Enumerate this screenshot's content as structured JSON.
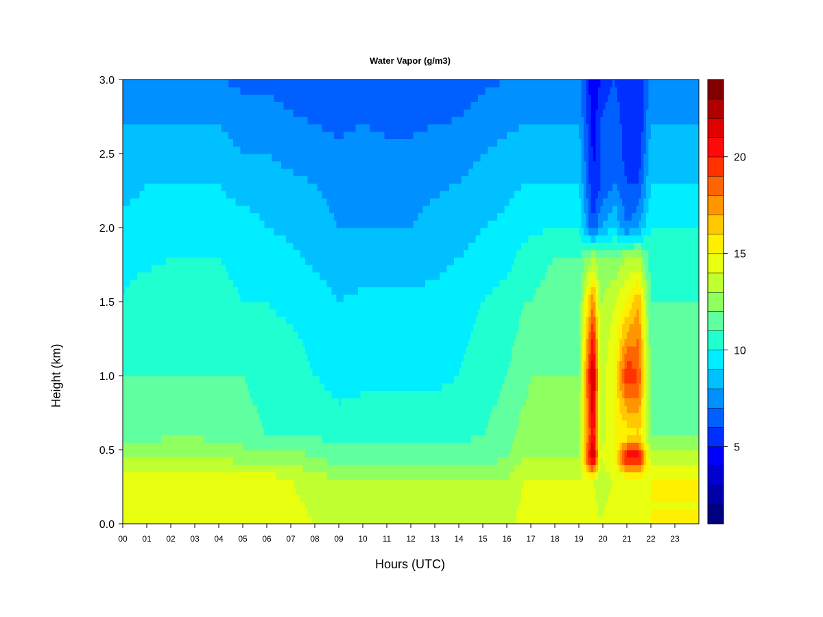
{
  "chart_data": {
    "type": "heatmap",
    "title": "Water Vapor (g/m3)",
    "xlabel": "Hours (UTC)",
    "ylabel": "Height (km)",
    "xlim": [
      0,
      24
    ],
    "ylim": [
      0,
      3
    ],
    "x_ticks": [
      0,
      1,
      2,
      3,
      4,
      5,
      6,
      7,
      8,
      9,
      10,
      11,
      12,
      13,
      14,
      15,
      16,
      17,
      18,
      19,
      20,
      21,
      22,
      23
    ],
    "x_tick_labels": [
      "00",
      "01",
      "02",
      "03",
      "04",
      "05",
      "06",
      "07",
      "08",
      "09",
      "10",
      "11",
      "12",
      "13",
      "14",
      "15",
      "16",
      "17",
      "18",
      "19",
      "20",
      "21",
      "22",
      "23"
    ],
    "y_ticks": [
      0,
      0.5,
      1,
      1.5,
      2,
      2.5,
      3
    ],
    "y_tick_labels": [
      "0.0",
      "0.5",
      "1.0",
      "1.5",
      "2.0",
      "2.5",
      "3.0"
    ],
    "colorbar": {
      "min": 1,
      "max": 24,
      "ticks": [
        5,
        10,
        15,
        20
      ],
      "tick_labels": [
        "5",
        "10",
        "15",
        "20"
      ],
      "colors": [
        "#000080",
        "#0000A8",
        "#0000D0",
        "#0000FF",
        "#0030FF",
        "#0060FF",
        "#0090FF",
        "#00C0FF",
        "#00EEFF",
        "#20FFD0",
        "#60FFA0",
        "#90FF60",
        "#C0FF30",
        "#E8FF10",
        "#FFF000",
        "#FFC800",
        "#FF9600",
        "#FF6400",
        "#FF3200",
        "#FF0A0A",
        "#E00000",
        "#B00000",
        "#800000"
      ]
    },
    "value_levels": {
      "x_hours": [
        0,
        1,
        2,
        3,
        4,
        5,
        6,
        7,
        8,
        9,
        10,
        11,
        12,
        13,
        14,
        15,
        16,
        16.7,
        17,
        18,
        19,
        19.6,
        19.9,
        20.5,
        21,
        21.5,
        22,
        23,
        24
      ],
      "heights_km": [
        0,
        0.3,
        0.45,
        0.6,
        1.0,
        1.5,
        1.8,
        2.0,
        2.3,
        2.7,
        3.0
      ],
      "values": [
        [
          15,
          15,
          13,
          11.5,
          11,
          10,
          9.8,
          9.5,
          8.5,
          8,
          7.5
        ],
        [
          15,
          14.5,
          13,
          11.5,
          11,
          10.5,
          9.8,
          9.5,
          9,
          8,
          7.5
        ],
        [
          15,
          14.5,
          13,
          12,
          11,
          10.5,
          10,
          9.5,
          9,
          8,
          7
        ],
        [
          15,
          14.5,
          13,
          12,
          11,
          10.5,
          10,
          9.5,
          9,
          8,
          7
        ],
        [
          15,
          14.5,
          13,
          11.5,
          11,
          10.5,
          10,
          9.5,
          9,
          8,
          7
        ],
        [
          15,
          14.5,
          12.5,
          11.5,
          11,
          10,
          9.5,
          9.5,
          8.5,
          7.5,
          6.8
        ],
        [
          14.5,
          14.5,
          12.5,
          11,
          10.5,
          10,
          9.5,
          9,
          8.5,
          7.5,
          6.8
        ],
        [
          14.5,
          14,
          12.5,
          11,
          10.5,
          9.8,
          9.2,
          8.8,
          8.2,
          7.2,
          6.5
        ],
        [
          14,
          13.5,
          12,
          11,
          10,
          9.5,
          8.8,
          8.5,
          8,
          7,
          6.2
        ],
        [
          13.5,
          13,
          11.5,
          10.5,
          9.6,
          9,
          8.5,
          8,
          7.6,
          6.8,
          6.0
        ],
        [
          13.5,
          13,
          11.5,
          10.5,
          9.8,
          9.2,
          8.5,
          8,
          7.8,
          7,
          6.1
        ],
        [
          13.5,
          13,
          11.5,
          10.5,
          9.8,
          9.2,
          8.5,
          8,
          7.8,
          6.8,
          6.0
        ],
        [
          13.5,
          13,
          11.5,
          10.5,
          9.8,
          9.2,
          8.5,
          8,
          7.8,
          6.8,
          6.0
        ],
        [
          13.5,
          13,
          11.5,
          10.5,
          9.8,
          9.3,
          8.7,
          8.2,
          7.9,
          7,
          6.1
        ],
        [
          13.5,
          13,
          11.5,
          10.8,
          10,
          9.6,
          9,
          8.5,
          8,
          7.1,
          6.3
        ],
        [
          13.5,
          13,
          11.5,
          11,
          10.5,
          10,
          9.4,
          9,
          8.5,
          7.5,
          6.8
        ],
        [
          13.5,
          13,
          12,
          11.5,
          11,
          10.5,
          9.6,
          9.2,
          8.8,
          7.8,
          7
        ],
        [
          14.5,
          14,
          13,
          12.5,
          11.5,
          11,
          10.5,
          9.5,
          9,
          8,
          7
        ],
        [
          14.5,
          14,
          13,
          12.5,
          12,
          11,
          10.5,
          9.8,
          9,
          8,
          7.5
        ],
        [
          14.5,
          14,
          13,
          12.5,
          12,
          11.5,
          11,
          10,
          9,
          8,
          7.5
        ],
        [
          14.5,
          14,
          13,
          12.5,
          12,
          11.5,
          11,
          10,
          9,
          8,
          7.5
        ],
        [
          14.5,
          14,
          23,
          21,
          23,
          18,
          13,
          6,
          5,
          4.5,
          4
        ],
        [
          14,
          13.5,
          14,
          13.5,
          13.5,
          13,
          12,
          8,
          6,
          6,
          5
        ],
        [
          14.5,
          14,
          15,
          15,
          15,
          14,
          12,
          9,
          7,
          7,
          6
        ],
        [
          14.5,
          14,
          21,
          15,
          20,
          15,
          13,
          7,
          6,
          5,
          5
        ],
        [
          14.5,
          14,
          21,
          16,
          19,
          17,
          13,
          8,
          6,
          5,
          5
        ],
        [
          15,
          15,
          13.5,
          12,
          11.5,
          11,
          10.5,
          10,
          9,
          8,
          7.5
        ],
        [
          15,
          15,
          13.5,
          12,
          11.5,
          11,
          10.5,
          10,
          9,
          8,
          7.5
        ],
        [
          15,
          15,
          13.5,
          12,
          11.5,
          11,
          10.5,
          10,
          9,
          8,
          7.5
        ]
      ]
    }
  }
}
